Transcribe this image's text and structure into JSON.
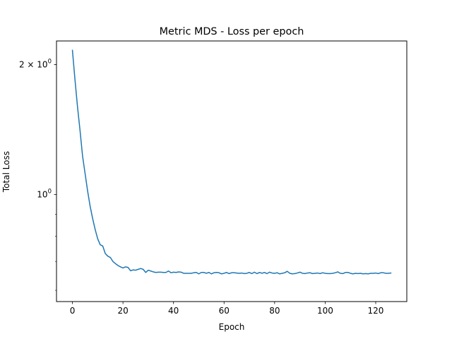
{
  "chart_data": {
    "type": "line",
    "title": "Metric MDS - Loss per epoch",
    "xlabel": "Epoch",
    "ylabel": "Total Loss",
    "xlim": [
      -6.3,
      132.3
    ],
    "ylim": [
      0.565,
      2.27
    ],
    "yscale": "log",
    "grid": false,
    "x_ticks": [
      {
        "value": 0,
        "label": "0"
      },
      {
        "value": 20,
        "label": "20"
      },
      {
        "value": 40,
        "label": "40"
      },
      {
        "value": 60,
        "label": "60"
      },
      {
        "value": 80,
        "label": "80"
      },
      {
        "value": 100,
        "label": "100"
      },
      {
        "value": 120,
        "label": "120"
      }
    ],
    "y_major_ticks": [
      {
        "value": 1,
        "base": "10",
        "exp": "0",
        "coef": ""
      },
      {
        "value": 2,
        "base": "10",
        "exp": "0",
        "coef": "2"
      }
    ],
    "y_minor_ticks": [
      0.6,
      0.7,
      0.8,
      0.9,
      2
    ],
    "series": [
      {
        "name": "",
        "color": "#1f77b4",
        "x": [
          0,
          1,
          2,
          3,
          4,
          5,
          6,
          7,
          8,
          9,
          10,
          11,
          12,
          13,
          14,
          15,
          16,
          17,
          18,
          19,
          20,
          21,
          22,
          23,
          24,
          25,
          26,
          27,
          28,
          29,
          30,
          31,
          32,
          33,
          34,
          35,
          36,
          37,
          38,
          39,
          40,
          41,
          42,
          43,
          44,
          45,
          46,
          47,
          48,
          49,
          50,
          51,
          52,
          53,
          54,
          55,
          56,
          57,
          58,
          59,
          60,
          61,
          62,
          63,
          64,
          65,
          66,
          67,
          68,
          69,
          70,
          71,
          72,
          73,
          74,
          75,
          76,
          77,
          78,
          79,
          80,
          81,
          82,
          83,
          84,
          85,
          86,
          87,
          88,
          89,
          90,
          91,
          92,
          93,
          94,
          95,
          96,
          97,
          98,
          99,
          100,
          101,
          102,
          103,
          104,
          105,
          106,
          107,
          108,
          109,
          110,
          111,
          112,
          113,
          114,
          115,
          116,
          117,
          118,
          119,
          120,
          121,
          122,
          123,
          124,
          125,
          126
        ],
        "y": [
          2.16,
          1.85,
          1.6,
          1.41,
          1.23,
          1.12,
          1.02,
          0.94,
          0.88,
          0.83,
          0.79,
          0.765,
          0.76,
          0.73,
          0.72,
          0.715,
          0.7,
          0.692,
          0.685,
          0.68,
          0.676,
          0.68,
          0.678,
          0.666,
          0.669,
          0.668,
          0.671,
          0.674,
          0.671,
          0.66,
          0.668,
          0.665,
          0.662,
          0.66,
          0.661,
          0.661,
          0.66,
          0.66,
          0.665,
          0.659,
          0.661,
          0.66,
          0.662,
          0.661,
          0.657,
          0.657,
          0.657,
          0.657,
          0.659,
          0.66,
          0.655,
          0.66,
          0.66,
          0.657,
          0.66,
          0.655,
          0.659,
          0.66,
          0.659,
          0.655,
          0.657,
          0.66,
          0.656,
          0.659,
          0.659,
          0.658,
          0.657,
          0.658,
          0.656,
          0.657,
          0.66,
          0.656,
          0.661,
          0.656,
          0.66,
          0.657,
          0.66,
          0.656,
          0.661,
          0.658,
          0.657,
          0.659,
          0.655,
          0.657,
          0.659,
          0.664,
          0.657,
          0.655,
          0.656,
          0.658,
          0.661,
          0.657,
          0.656,
          0.658,
          0.659,
          0.656,
          0.657,
          0.658,
          0.656,
          0.659,
          0.657,
          0.656,
          0.656,
          0.657,
          0.659,
          0.662,
          0.657,
          0.656,
          0.66,
          0.66,
          0.657,
          0.655,
          0.657,
          0.656,
          0.657,
          0.655,
          0.656,
          0.655,
          0.657,
          0.657,
          0.658,
          0.656,
          0.659,
          0.659,
          0.657,
          0.657,
          0.658
        ]
      }
    ]
  }
}
